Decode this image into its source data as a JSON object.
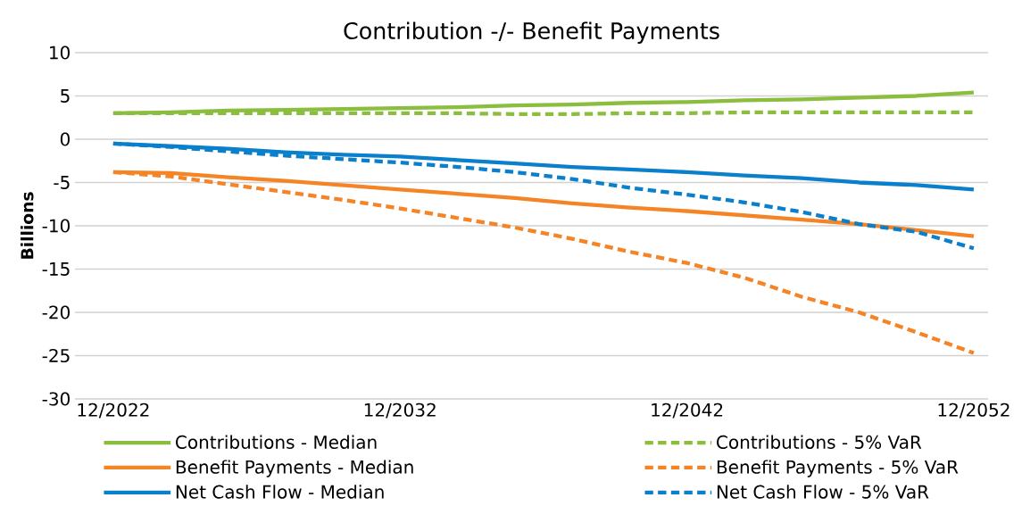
{
  "chart_data": {
    "type": "line",
    "title": "Contribution -/- Benefit Payments",
    "ylabel": "Billions",
    "x": [
      "2022-12",
      "2024-12",
      "2026-12",
      "2028-12",
      "2030-12",
      "2032-12",
      "2034-12",
      "2036-12",
      "2038-12",
      "2040-12",
      "2042-12",
      "2044-12",
      "2046-12",
      "2048-12",
      "2050-12",
      "2052-12"
    ],
    "xlim": [
      "2021-08",
      "2053-06"
    ],
    "xticks": [
      {
        "value": "2022-12",
        "label": "12/2022"
      },
      {
        "value": "2032-12",
        "label": "12/2032"
      },
      {
        "value": "2042-12",
        "label": "12/2042"
      },
      {
        "value": "2052-12",
        "label": "12/2052"
      }
    ],
    "ylim": [
      -30,
      10
    ],
    "yticks": [
      -30,
      -25,
      -20,
      -15,
      -10,
      -5,
      0,
      5,
      10
    ],
    "grid": "y",
    "legend": "bottom",
    "series": [
      {
        "name": "Contributions - Median",
        "color": "#8bbd3f",
        "line_style": "solid",
        "values": [
          3.0,
          3.1,
          3.3,
          3.4,
          3.5,
          3.6,
          3.7,
          3.9,
          4.0,
          4.2,
          4.3,
          4.5,
          4.6,
          4.8,
          5.0,
          5.4
        ]
      },
      {
        "name": "Contributions - 5% VaR",
        "color": "#8bbd3f",
        "line_style": "dashed",
        "values": [
          3.0,
          3.0,
          3.0,
          3.0,
          3.0,
          3.0,
          3.0,
          2.9,
          2.9,
          3.0,
          3.0,
          3.1,
          3.1,
          3.1,
          3.1,
          3.1
        ]
      },
      {
        "name": "Benefit Payments - Median",
        "color": "#f58426",
        "line_style": "solid",
        "values": [
          -3.8,
          -3.9,
          -4.4,
          -4.8,
          -5.3,
          -5.8,
          -6.3,
          -6.8,
          -7.4,
          -7.9,
          -8.3,
          -8.8,
          -9.3,
          -9.8,
          -10.5,
          -11.2
        ]
      },
      {
        "name": "Benefit Payments - 5% VaR",
        "color": "#f58426",
        "line_style": "dashed",
        "values": [
          -3.8,
          -4.3,
          -5.2,
          -6.1,
          -7.0,
          -8.0,
          -9.1,
          -10.2,
          -11.5,
          -13.0,
          -14.3,
          -16.0,
          -18.2,
          -20.0,
          -22.3,
          -24.7
        ]
      },
      {
        "name": "Net Cash Flow - Median",
        "color": "#0a7fcb",
        "line_style": "solid",
        "values": [
          -0.5,
          -0.8,
          -1.1,
          -1.5,
          -1.8,
          -2.0,
          -2.4,
          -2.8,
          -3.2,
          -3.5,
          -3.8,
          -4.2,
          -4.5,
          -5.0,
          -5.3,
          -5.8
        ]
      },
      {
        "name": "Net Cash Flow - 5% VaR",
        "color": "#0a7fcb",
        "line_style": "dashed",
        "values": [
          -0.5,
          -0.9,
          -1.4,
          -1.9,
          -2.3,
          -2.7,
          -3.2,
          -3.8,
          -4.6,
          -5.6,
          -6.4,
          -7.3,
          -8.4,
          -9.8,
          -10.7,
          -12.6
        ]
      }
    ]
  }
}
